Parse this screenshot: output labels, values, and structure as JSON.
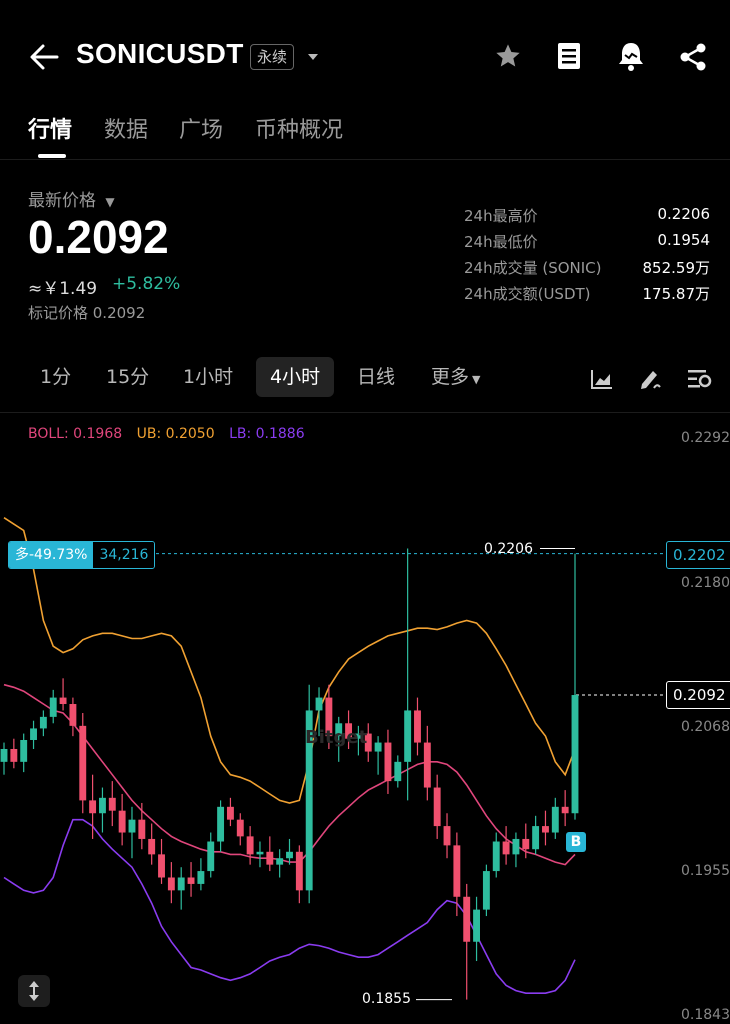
{
  "header": {
    "title": "SONICUSDT",
    "badge": "永续",
    "icons": [
      "back-arrow-icon",
      "chevron-down-icon",
      "star-icon",
      "notebook-icon",
      "alert-bell-icon",
      "share-icon"
    ]
  },
  "tabs": [
    {
      "label": "行情",
      "active": true
    },
    {
      "label": "数据"
    },
    {
      "label": "广场"
    },
    {
      "label": "币种概况"
    }
  ],
  "price": {
    "latest_label": "最新价格",
    "last": "0.2092",
    "cny": "≈￥1.49",
    "change": "+5.82%",
    "mark": "标记价格 0.2092"
  },
  "stats": [
    {
      "label": "24h最高价",
      "value": "0.2206"
    },
    {
      "label": "24h最低价",
      "value": "0.1954"
    },
    {
      "label": "24h成交量 (SONIC)",
      "value": "852.59万"
    },
    {
      "label": "24h成交额(USDT)",
      "value": "175.87万"
    }
  ],
  "intervals": [
    {
      "label": "1分"
    },
    {
      "label": "15分"
    },
    {
      "label": "1小时"
    },
    {
      "label": "4小时",
      "active": true
    },
    {
      "label": "日线"
    },
    {
      "label": "更多"
    }
  ],
  "chart_legend": {
    "boll": "BOLL: 0.1968",
    "ub": "UB: 0.2050",
    "lb": "LB: 0.1886"
  },
  "chart": {
    "y_ticks": [
      "0.2292",
      "0.2180",
      "0.2068",
      "0.1955",
      "0.1843"
    ],
    "current_price_tag": "0.2092",
    "position_price_tag": "0.2202",
    "position_pct": "多-49.73%",
    "position_qty": "34,216",
    "high_label": "0.2206",
    "low_label": "0.1855",
    "buy_marker": "B",
    "watermark": "Bitget",
    "colors": {
      "up": "#2ebd9f",
      "down": "#f0506e",
      "boll": "#e0467c",
      "ub": "#f0a132",
      "lb": "#8a3cf0",
      "accent": "#29b6d6"
    }
  },
  "chart_data": {
    "type": "candlestick",
    "y_range": [
      0.1843,
      0.2292
    ],
    "candles": [
      [
        0.204,
        0.2055,
        0.203,
        0.205
      ],
      [
        0.205,
        0.2058,
        0.2035,
        0.204
      ],
      [
        0.204,
        0.2062,
        0.2032,
        0.2057
      ],
      [
        0.2057,
        0.2072,
        0.205,
        0.2066
      ],
      [
        0.2066,
        0.208,
        0.206,
        0.2075
      ],
      [
        0.2075,
        0.2096,
        0.207,
        0.209
      ],
      [
        0.209,
        0.2105,
        0.208,
        0.2085
      ],
      [
        0.2085,
        0.209,
        0.206,
        0.2068
      ],
      [
        0.2068,
        0.2078,
        0.2,
        0.201
      ],
      [
        0.201,
        0.203,
        0.198,
        0.2
      ],
      [
        0.2,
        0.202,
        0.1985,
        0.2012
      ],
      [
        0.2012,
        0.2025,
        0.199,
        0.2002
      ],
      [
        0.2002,
        0.2015,
        0.1975,
        0.1985
      ],
      [
        0.1985,
        0.2005,
        0.1965,
        0.1995
      ],
      [
        0.1995,
        0.2008,
        0.1972,
        0.198
      ],
      [
        0.198,
        0.1992,
        0.196,
        0.1968
      ],
      [
        0.1968,
        0.198,
        0.1945,
        0.195
      ],
      [
        0.195,
        0.1962,
        0.193,
        0.194
      ],
      [
        0.194,
        0.1958,
        0.1925,
        0.195
      ],
      [
        0.195,
        0.1962,
        0.1935,
        0.1945
      ],
      [
        0.1945,
        0.1965,
        0.194,
        0.1955
      ],
      [
        0.1955,
        0.1985,
        0.195,
        0.1978
      ],
      [
        0.1978,
        0.201,
        0.197,
        0.2005
      ],
      [
        0.2005,
        0.2012,
        0.199,
        0.1995
      ],
      [
        0.1995,
        0.2,
        0.1975,
        0.1982
      ],
      [
        0.1982,
        0.199,
        0.196,
        0.1968
      ],
      [
        0.1968,
        0.1978,
        0.1958,
        0.197
      ],
      [
        0.197,
        0.1982,
        0.1955,
        0.196
      ],
      [
        0.196,
        0.1972,
        0.195,
        0.1965
      ],
      [
        0.1965,
        0.198,
        0.196,
        0.197
      ],
      [
        0.197,
        0.1975,
        0.193,
        0.194
      ],
      [
        0.194,
        0.21,
        0.193,
        0.208
      ],
      [
        0.208,
        0.2098,
        0.206,
        0.209
      ],
      [
        0.209,
        0.21,
        0.205,
        0.206
      ],
      [
        0.206,
        0.2075,
        0.204,
        0.207
      ],
      [
        0.207,
        0.208,
        0.205,
        0.2058
      ],
      [
        0.2058,
        0.2068,
        0.2045,
        0.2062
      ],
      [
        0.2062,
        0.207,
        0.204,
        0.2048
      ],
      [
        0.2048,
        0.206,
        0.203,
        0.2055
      ],
      [
        0.2055,
        0.2065,
        0.2015,
        0.2025
      ],
      [
        0.2025,
        0.2045,
        0.202,
        0.204
      ],
      [
        0.204,
        0.2206,
        0.201,
        0.208
      ],
      [
        0.208,
        0.209,
        0.2045,
        0.2055
      ],
      [
        0.2055,
        0.2068,
        0.201,
        0.202
      ],
      [
        0.202,
        0.203,
        0.198,
        0.199
      ],
      [
        0.199,
        0.2,
        0.1965,
        0.1975
      ],
      [
        0.1975,
        0.1985,
        0.192,
        0.1935
      ],
      [
        0.1935,
        0.1945,
        0.1855,
        0.19
      ],
      [
        0.19,
        0.1935,
        0.1885,
        0.1925
      ],
      [
        0.1925,
        0.196,
        0.192,
        0.1955
      ],
      [
        0.1955,
        0.1985,
        0.195,
        0.1978
      ],
      [
        0.1978,
        0.199,
        0.196,
        0.1968
      ],
      [
        0.1968,
        0.1985,
        0.1958,
        0.198
      ],
      [
        0.198,
        0.1992,
        0.1965,
        0.1972
      ],
      [
        0.1972,
        0.1998,
        0.1968,
        0.199
      ],
      [
        0.199,
        0.2002,
        0.1975,
        0.1985
      ],
      [
        0.1985,
        0.2012,
        0.198,
        0.2005
      ],
      [
        0.2005,
        0.2018,
        0.199,
        0.2
      ],
      [
        0.2,
        0.2202,
        0.1995,
        0.2092
      ]
    ],
    "boll": [
      0.21,
      0.2098,
      0.2095,
      0.209,
      0.2085,
      0.208,
      0.2078,
      0.207,
      0.206,
      0.205,
      0.204,
      0.203,
      0.202,
      0.201,
      0.2002,
      0.1995,
      0.1988,
      0.1982,
      0.1978,
      0.1975,
      0.1972,
      0.197,
      0.197,
      0.1968,
      0.1968,
      0.1966,
      0.1965,
      0.1965,
      0.1964,
      0.1962,
      0.1962,
      0.197,
      0.198,
      0.199,
      0.1998,
      0.2005,
      0.2012,
      0.2018,
      0.2022,
      0.2026,
      0.203,
      0.2034,
      0.2038,
      0.204,
      0.204,
      0.2038,
      0.2032,
      0.2022,
      0.201,
      0.1998,
      0.1988,
      0.198,
      0.1975,
      0.197,
      0.1968,
      0.1965,
      0.1962,
      0.196,
      0.1968
    ],
    "ub": [
      0.223,
      0.2225,
      0.222,
      0.219,
      0.215,
      0.213,
      0.2125,
      0.2128,
      0.2135,
      0.2138,
      0.214,
      0.214,
      0.2138,
      0.2136,
      0.2136,
      0.2138,
      0.214,
      0.2138,
      0.213,
      0.211,
      0.209,
      0.206,
      0.204,
      0.203,
      0.2028,
      0.2025,
      0.202,
      0.2015,
      0.201,
      0.2008,
      0.201,
      0.204,
      0.208,
      0.2098,
      0.211,
      0.212,
      0.2125,
      0.213,
      0.2134,
      0.2138,
      0.214,
      0.2142,
      0.2144,
      0.2144,
      0.2143,
      0.2145,
      0.2148,
      0.215,
      0.2148,
      0.214,
      0.2128,
      0.2115,
      0.21,
      0.2085,
      0.207,
      0.206,
      0.204,
      0.203,
      0.205
    ],
    "lb": [
      0.195,
      0.1945,
      0.194,
      0.1938,
      0.194,
      0.195,
      0.1975,
      0.1995,
      0.1995,
      0.199,
      0.198,
      0.1972,
      0.1965,
      0.1958,
      0.1945,
      0.193,
      0.1912,
      0.19,
      0.189,
      0.188,
      0.1878,
      0.1875,
      0.1872,
      0.187,
      0.1872,
      0.1875,
      0.188,
      0.1885,
      0.1888,
      0.189,
      0.1895,
      0.1898,
      0.1897,
      0.1895,
      0.1892,
      0.189,
      0.1888,
      0.1888,
      0.189,
      0.1895,
      0.19,
      0.1905,
      0.191,
      0.1915,
      0.1925,
      0.1932,
      0.193,
      0.192,
      0.1905,
      0.189,
      0.1875,
      0.1866,
      0.1862,
      0.186,
      0.186,
      0.186,
      0.1862,
      0.187,
      0.1886
    ]
  }
}
